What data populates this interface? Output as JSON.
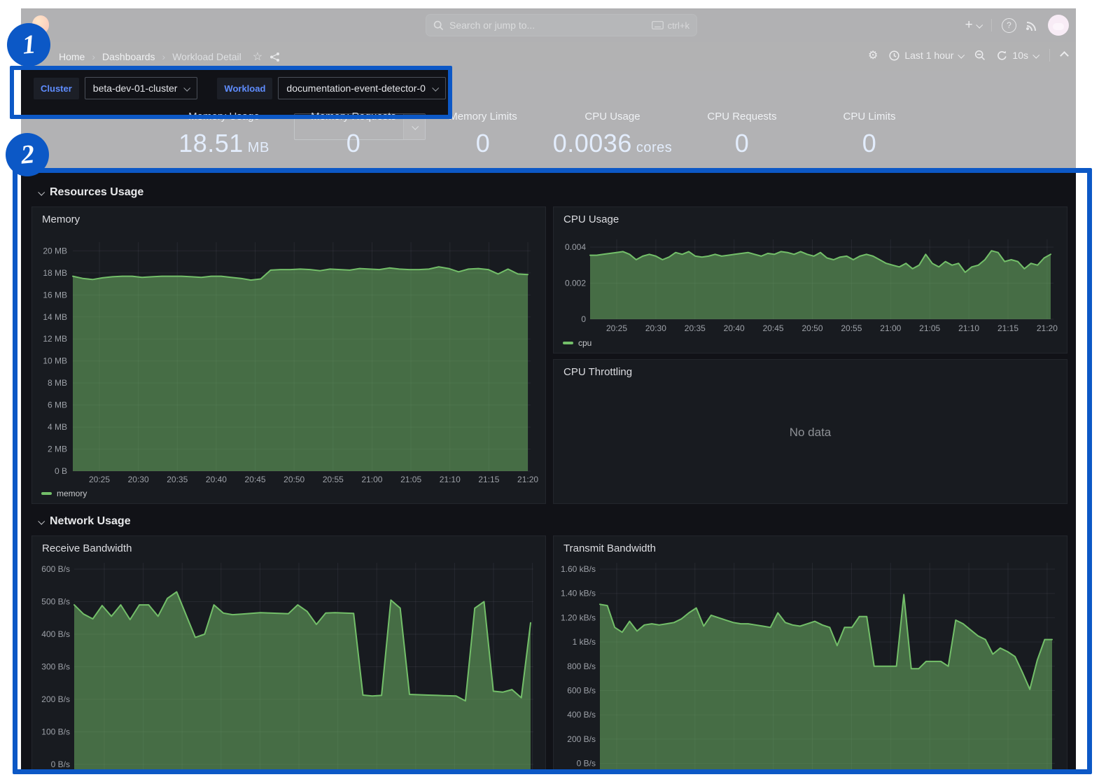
{
  "annotations": {
    "step1": "1",
    "step2": "2",
    "accent_color": "#0c58c6"
  },
  "nav": {
    "search_placeholder": "Search or jump to...",
    "search_shortcut": "ctrl+k",
    "plus_label": "+",
    "help_label": "?",
    "breadcrumb": [
      "Home",
      "Dashboards",
      "Workload Detail"
    ],
    "time_range": "Last 1 hour",
    "refresh_interval": "10s"
  },
  "variables": {
    "cluster_label": "Cluster",
    "cluster_value": "beta-dev-01-cluster",
    "workload_label": "Workload",
    "workload_value": "documentation-event-detector-0"
  },
  "stats": [
    {
      "label": "Memory Usage",
      "value": "18.51",
      "unit": "MB"
    },
    {
      "label": "Memory Requests",
      "value": "0",
      "unit": ""
    },
    {
      "label": "Memory Limits",
      "value": "0",
      "unit": ""
    },
    {
      "label": "CPU Usage",
      "value": "0.0036",
      "unit": "cores"
    },
    {
      "label": "CPU Requests",
      "value": "0",
      "unit": ""
    },
    {
      "label": "CPU Limits",
      "value": "0",
      "unit": ""
    }
  ],
  "sections": {
    "resources": "Resources Usage",
    "network": "Network Usage"
  },
  "panels": {
    "memory_title": "Memory",
    "cpu_title": "CPU Usage",
    "throttling_title": "CPU Throttling",
    "no_data": "No data",
    "receive_title": "Receive Bandwidth",
    "transmit_title": "Transmit Bandwidth"
  },
  "colors": {
    "series_green": "#73BF69",
    "annotation_blue": "#0c58c6"
  },
  "chart_data": [
    {
      "id": "memory",
      "type": "area",
      "title": "Memory",
      "legend": [
        "memory"
      ],
      "unit": "MB",
      "ylim": [
        0,
        20.7
      ],
      "x_ticks": [
        "20:25",
        "20:30",
        "20:35",
        "20:40",
        "20:45",
        "20:50",
        "20:55",
        "21:00",
        "21:05",
        "21:10",
        "21:15",
        "21:20"
      ],
      "y_ticks": [
        [
          "0 B",
          0
        ],
        [
          "2 MB",
          2
        ],
        [
          "4 MB",
          4
        ],
        [
          "6 MB",
          6
        ],
        [
          "8 MB",
          8
        ],
        [
          "10 MB",
          10
        ],
        [
          "12 MB",
          12
        ],
        [
          "14 MB",
          14
        ],
        [
          "16 MB",
          16
        ],
        [
          "18 MB",
          18
        ],
        [
          "20 MB",
          20
        ]
      ],
      "values": [
        17.7,
        17.5,
        17.4,
        17.55,
        17.65,
        17.7,
        17.7,
        17.6,
        17.65,
        17.7,
        17.7,
        17.7,
        17.65,
        17.6,
        17.7,
        17.7,
        17.6,
        17.5,
        17.35,
        17.45,
        18.25,
        18.3,
        18.3,
        18.35,
        18.3,
        18.2,
        18.35,
        18.3,
        18.25,
        18.4,
        18.35,
        18.3,
        18.45,
        18.35,
        18.3,
        18.3,
        18.35,
        18.55,
        18.4,
        18.1,
        18.35,
        18.4,
        18.3,
        17.9,
        18.35,
        17.9,
        17.85
      ]
    },
    {
      "id": "cpu",
      "type": "area",
      "title": "CPU Usage",
      "legend": [
        "cpu"
      ],
      "unit": "cores",
      "ylim": [
        0,
        0.0044
      ],
      "x_ticks": [
        "20:25",
        "20:30",
        "20:35",
        "20:40",
        "20:45",
        "20:50",
        "20:55",
        "21:00",
        "21:05",
        "21:10",
        "21:15",
        "21:20"
      ],
      "y_ticks": [
        [
          "0",
          0
        ],
        [
          "0.002",
          0.002
        ],
        [
          "0.004",
          0.004
        ]
      ],
      "values": [
        0.00355,
        0.00355,
        0.0036,
        0.00365,
        0.0037,
        0.00375,
        0.0036,
        0.0033,
        0.0035,
        0.0036,
        0.0035,
        0.0033,
        0.00345,
        0.0037,
        0.0036,
        0.00375,
        0.0035,
        0.00345,
        0.0035,
        0.0036,
        0.0035,
        0.00355,
        0.0036,
        0.00365,
        0.0037,
        0.0036,
        0.0035,
        0.00365,
        0.0036,
        0.00375,
        0.0037,
        0.0036,
        0.00375,
        0.0036,
        0.0035,
        0.0037,
        0.0034,
        0.0033,
        0.00345,
        0.0035,
        0.0033,
        0.0035,
        0.0036,
        0.0035,
        0.0033,
        0.0031,
        0.003,
        0.0029,
        0.0031,
        0.0028,
        0.003,
        0.0036,
        0.0031,
        0.0029,
        0.0032,
        0.003,
        0.0031,
        0.0026,
        0.0029,
        0.003,
        0.0033,
        0.0038,
        0.0037,
        0.0032,
        0.0033,
        0.0032,
        0.0028,
        0.0031,
        0.003,
        0.0034,
        0.0036
      ]
    },
    {
      "id": "receive",
      "type": "area",
      "title": "Receive Bandwidth",
      "unit": "B/s",
      "ylim": [
        0,
        620
      ],
      "y_ticks": [
        [
          "0 B/s",
          0
        ],
        [
          "100 B/s",
          100
        ],
        [
          "200 B/s",
          200
        ],
        [
          "300 B/s",
          300
        ],
        [
          "400 B/s",
          400
        ],
        [
          "500 B/s",
          500
        ],
        [
          "600 B/s",
          600
        ]
      ],
      "values": [
        490,
        462,
        447,
        488,
        455,
        490,
        445,
        490,
        490,
        455,
        510,
        530,
        460,
        390,
        400,
        490,
        465,
        460,
        462,
        464,
        466,
        465,
        464,
        463,
        490,
        470,
        430,
        465,
        466,
        465,
        464,
        213,
        210,
        212,
        505,
        480,
        215,
        214,
        213,
        212,
        211,
        210,
        195,
        480,
        500,
        225,
        222,
        230,
        205,
        435
      ]
    },
    {
      "id": "transmit",
      "type": "area",
      "title": "Transmit Bandwidth",
      "unit": "kB/s",
      "ylim": [
        0,
        1.66
      ],
      "y_ticks": [
        [
          "0 B/s",
          0
        ],
        [
          "200 B/s",
          0.2
        ],
        [
          "400 B/s",
          0.4
        ],
        [
          "600 B/s",
          0.6
        ],
        [
          "800 B/s",
          0.8
        ],
        [
          "1 kB/s",
          1.0
        ],
        [
          "1.20 kB/s",
          1.2
        ],
        [
          "1.40 kB/s",
          1.4
        ],
        [
          "1.60 kB/s",
          1.6
        ]
      ],
      "values": [
        1.31,
        1.3,
        1.12,
        1.08,
        1.17,
        1.09,
        1.14,
        1.15,
        1.14,
        1.15,
        1.16,
        1.19,
        1.24,
        1.28,
        1.13,
        1.22,
        1.2,
        1.18,
        1.16,
        1.15,
        1.15,
        1.14,
        1.13,
        1.12,
        1.24,
        1.16,
        1.14,
        1.13,
        1.15,
        1.17,
        1.14,
        1.12,
        0.97,
        1.12,
        1.12,
        1.21,
        1.21,
        0.8,
        0.8,
        0.8,
        0.8,
        1.39,
        0.78,
        0.78,
        0.84,
        0.84,
        0.84,
        0.8,
        1.18,
        1.15,
        1.1,
        1.05,
        1.02,
        0.9,
        0.95,
        0.92,
        0.88,
        0.75,
        0.61,
        0.85,
        1.02,
        1.02
      ]
    }
  ]
}
